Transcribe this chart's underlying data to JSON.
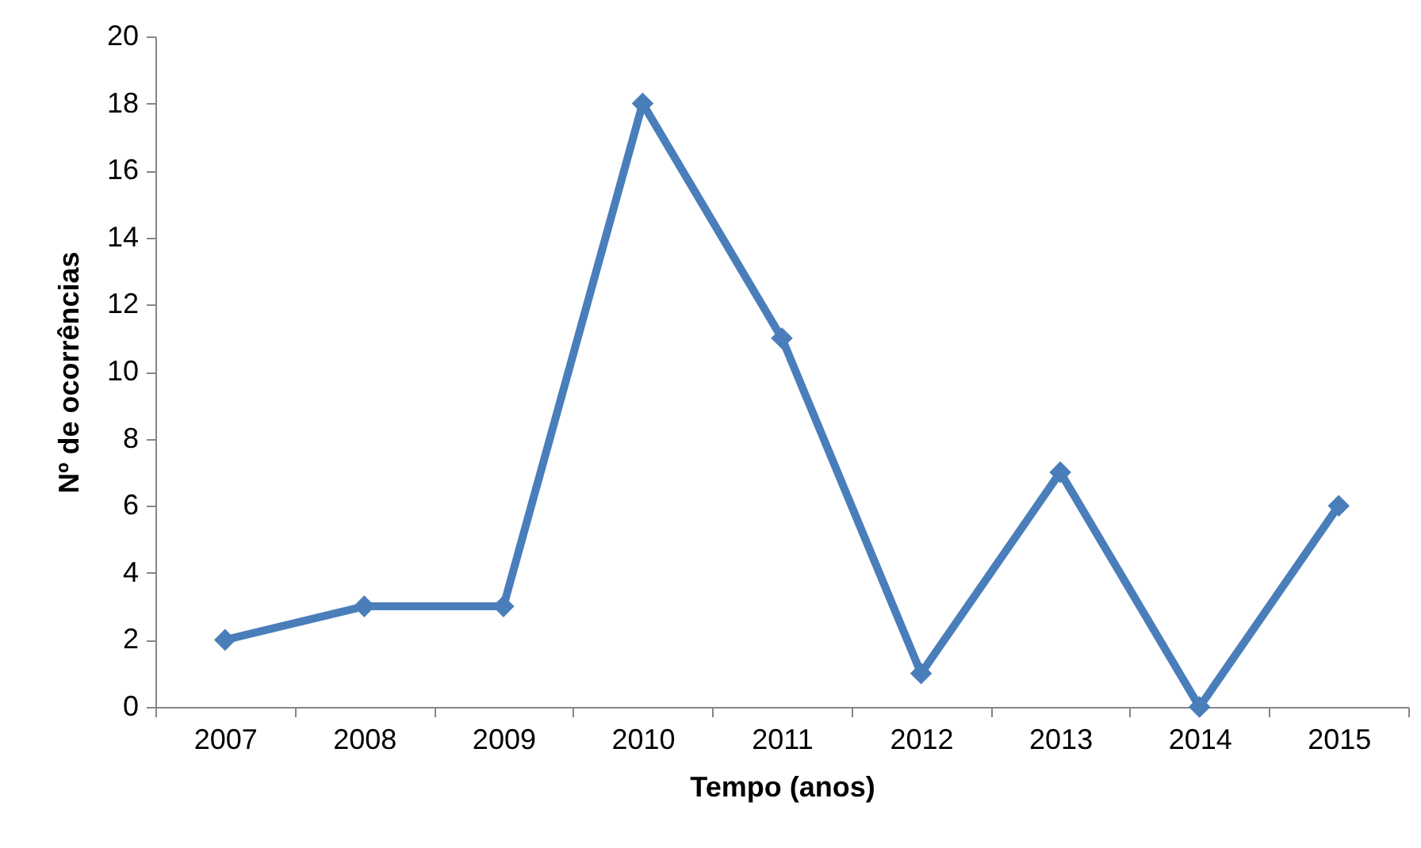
{
  "chart_data": {
    "type": "line",
    "xlabel": "Tempo (anos)",
    "ylabel": "Nº de ocorrências",
    "categories": [
      "2007",
      "2008",
      "2009",
      "2010",
      "2011",
      "2012",
      "2013",
      "2014",
      "2015"
    ],
    "series": [
      {
        "color": "#4a7ebb",
        "values": [
          2,
          3,
          3,
          18,
          11,
          1,
          7,
          0,
          6
        ]
      }
    ],
    "ylim": [
      0,
      20
    ],
    "yticks": [
      0,
      2,
      4,
      6,
      8,
      10,
      12,
      14,
      16,
      18,
      20
    ],
    "grid": false,
    "marker": "diamond",
    "line_style": "solid"
  }
}
